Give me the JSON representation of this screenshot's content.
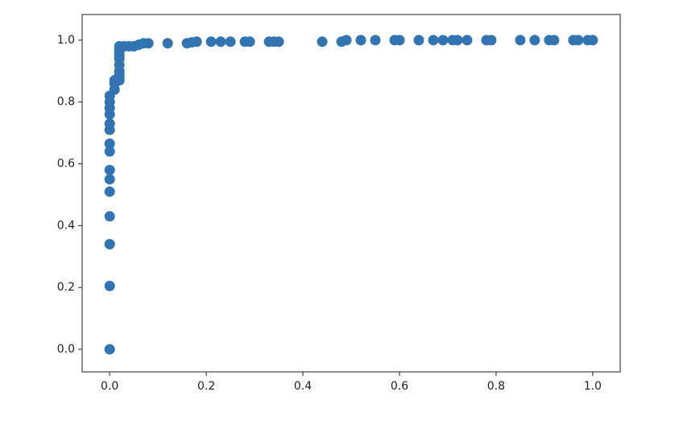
{
  "chart_data": {
    "type": "scatter",
    "color": "#3274b2",
    "x": [
      0,
      0,
      0,
      0,
      0,
      0,
      0,
      0,
      0,
      0,
      0,
      0,
      0,
      0,
      0,
      0.01,
      0.01,
      0.01,
      0.02,
      0.02,
      0.02,
      0.02,
      0.02,
      0.02,
      0.02,
      0.02,
      0.02,
      0.02,
      0.03,
      0.04,
      0.05,
      0.06,
      0.07,
      0.08,
      0.12,
      0.16,
      0.17,
      0.18,
      0.21,
      0.23,
      0.25,
      0.28,
      0.29,
      0.33,
      0.34,
      0.35,
      0.44,
      0.48,
      0.49,
      0.52,
      0.55,
      0.59,
      0.6,
      0.64,
      0.67,
      0.69,
      0.71,
      0.72,
      0.74,
      0.78,
      0.79,
      0.85,
      0.88,
      0.91,
      0.92,
      0.96,
      0.97,
      0.99,
      1.0
    ],
    "values": [
      0,
      0.205,
      0.34,
      0.43,
      0.51,
      0.55,
      0.58,
      0.64,
      0.665,
      0.71,
      0.73,
      0.76,
      0.78,
      0.8,
      0.82,
      0.84,
      0.86,
      0.87,
      0.87,
      0.88,
      0.89,
      0.9,
      0.92,
      0.94,
      0.95,
      0.96,
      0.97,
      0.98,
      0.98,
      0.98,
      0.98,
      0.985,
      0.99,
      0.99,
      0.99,
      0.99,
      0.993,
      0.995,
      0.995,
      0.995,
      0.995,
      0.995,
      0.995,
      0.995,
      0.995,
      0.995,
      0.995,
      0.995,
      1.0,
      1.0,
      1.0,
      1.0,
      1.0,
      1.0,
      1.0,
      1.0,
      1.0,
      1.0,
      1.0,
      1.0,
      1.0,
      1.0,
      1.0,
      1.0,
      1.0,
      1.0,
      1.0,
      1.0,
      1.0
    ],
    "xlim": [
      -0.057,
      1.057
    ],
    "ylim": [
      -0.073,
      1.083
    ],
    "xticks": [
      {
        "value": 0,
        "label": "0.0"
      },
      0.2,
      0.4,
      0.6,
      0.8,
      {
        "value": 1,
        "label": "1.0"
      }
    ],
    "yticks": [
      {
        "value": 0,
        "label": "0.0"
      },
      0.2,
      0.4,
      0.6,
      0.8,
      {
        "value": 1,
        "label": "1.0"
      }
    ],
    "grid": false
  }
}
